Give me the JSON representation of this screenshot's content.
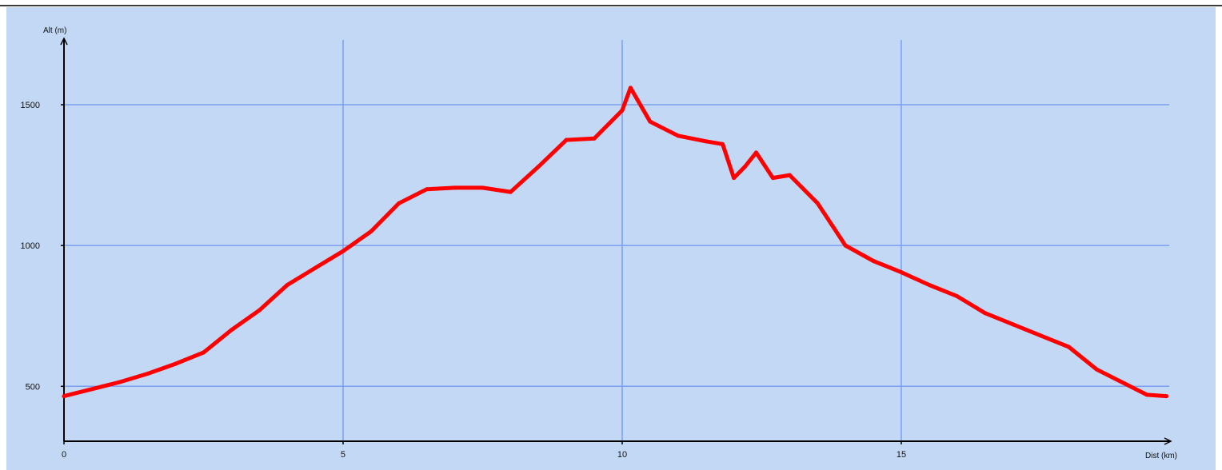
{
  "chart_data": {
    "type": "line",
    "title": "",
    "xlabel": "Dist (km)",
    "ylabel": "Alt (m)",
    "xlim": [
      0,
      19.8
    ],
    "ylim": [
      305,
      1730
    ],
    "x_ticks": [
      0,
      5,
      10,
      15
    ],
    "x_tick_labels": [
      "0",
      "5",
      "10",
      "15"
    ],
    "y_ticks": [
      500,
      1000,
      1500
    ],
    "y_tick_labels": [
      "500",
      "1000",
      "1500"
    ],
    "grid": true,
    "colors": {
      "line": "#ff0000",
      "grid": "#7b9ff0",
      "axis": "#000000",
      "background": "#c2d8f5"
    },
    "series": [
      {
        "x": [
          0,
          0.5,
          1.0,
          1.5,
          2.0,
          2.5,
          3.0,
          3.5,
          4.0,
          4.5,
          5.0,
          5.5,
          6.0,
          6.5,
          7.0,
          7.5,
          8.0,
          8.5,
          9.0,
          9.5,
          10.0,
          10.15,
          10.5,
          11.0,
          11.5,
          11.8,
          12.0,
          12.2,
          12.4,
          12.7,
          13.0,
          13.5,
          14.0,
          14.5,
          15.0,
          15.5,
          16.0,
          16.5,
          17.0,
          17.5,
          18.0,
          18.5,
          19.0,
          19.4,
          19.75
        ],
        "y": [
          465,
          490,
          515,
          545,
          580,
          620,
          700,
          770,
          860,
          920,
          980,
          1050,
          1150,
          1200,
          1205,
          1205,
          1190,
          1280,
          1375,
          1380,
          1480,
          1560,
          1440,
          1390,
          1370,
          1360,
          1240,
          1280,
          1330,
          1240,
          1250,
          1150,
          1000,
          945,
          905,
          860,
          820,
          760,
          720,
          680,
          640,
          560,
          510,
          470,
          465
        ]
      }
    ]
  }
}
